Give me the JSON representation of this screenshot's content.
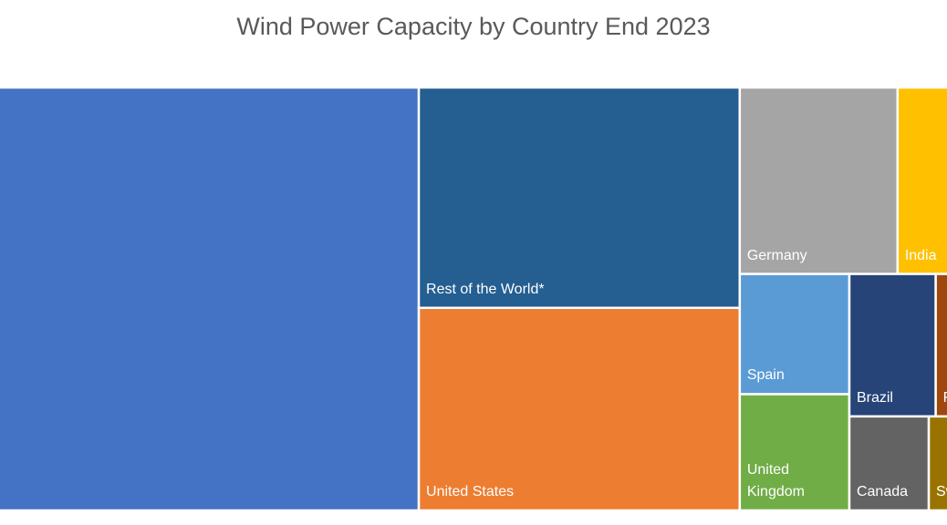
{
  "chart_data": {
    "type": "treemap",
    "title": "Wind Power Capacity by Country End 2023",
    "categories": [
      null,
      "Rest of the World*",
      "United States",
      "Germany",
      "India",
      "Spain",
      "United Kingdom",
      "Brazil",
      "France",
      "Canada",
      "Sweden"
    ],
    "values": [
      441,
      161,
      148,
      67,
      45,
      30,
      29,
      28,
      22,
      17,
      16
    ],
    "colors": [
      "#4472c4",
      "#255e91",
      "#ed7d31",
      "#a5a5a5",
      "#ffc000",
      "#5b9bd5",
      "#70ad47",
      "#264478",
      "#9e480e",
      "#636363",
      "#997300"
    ]
  }
}
